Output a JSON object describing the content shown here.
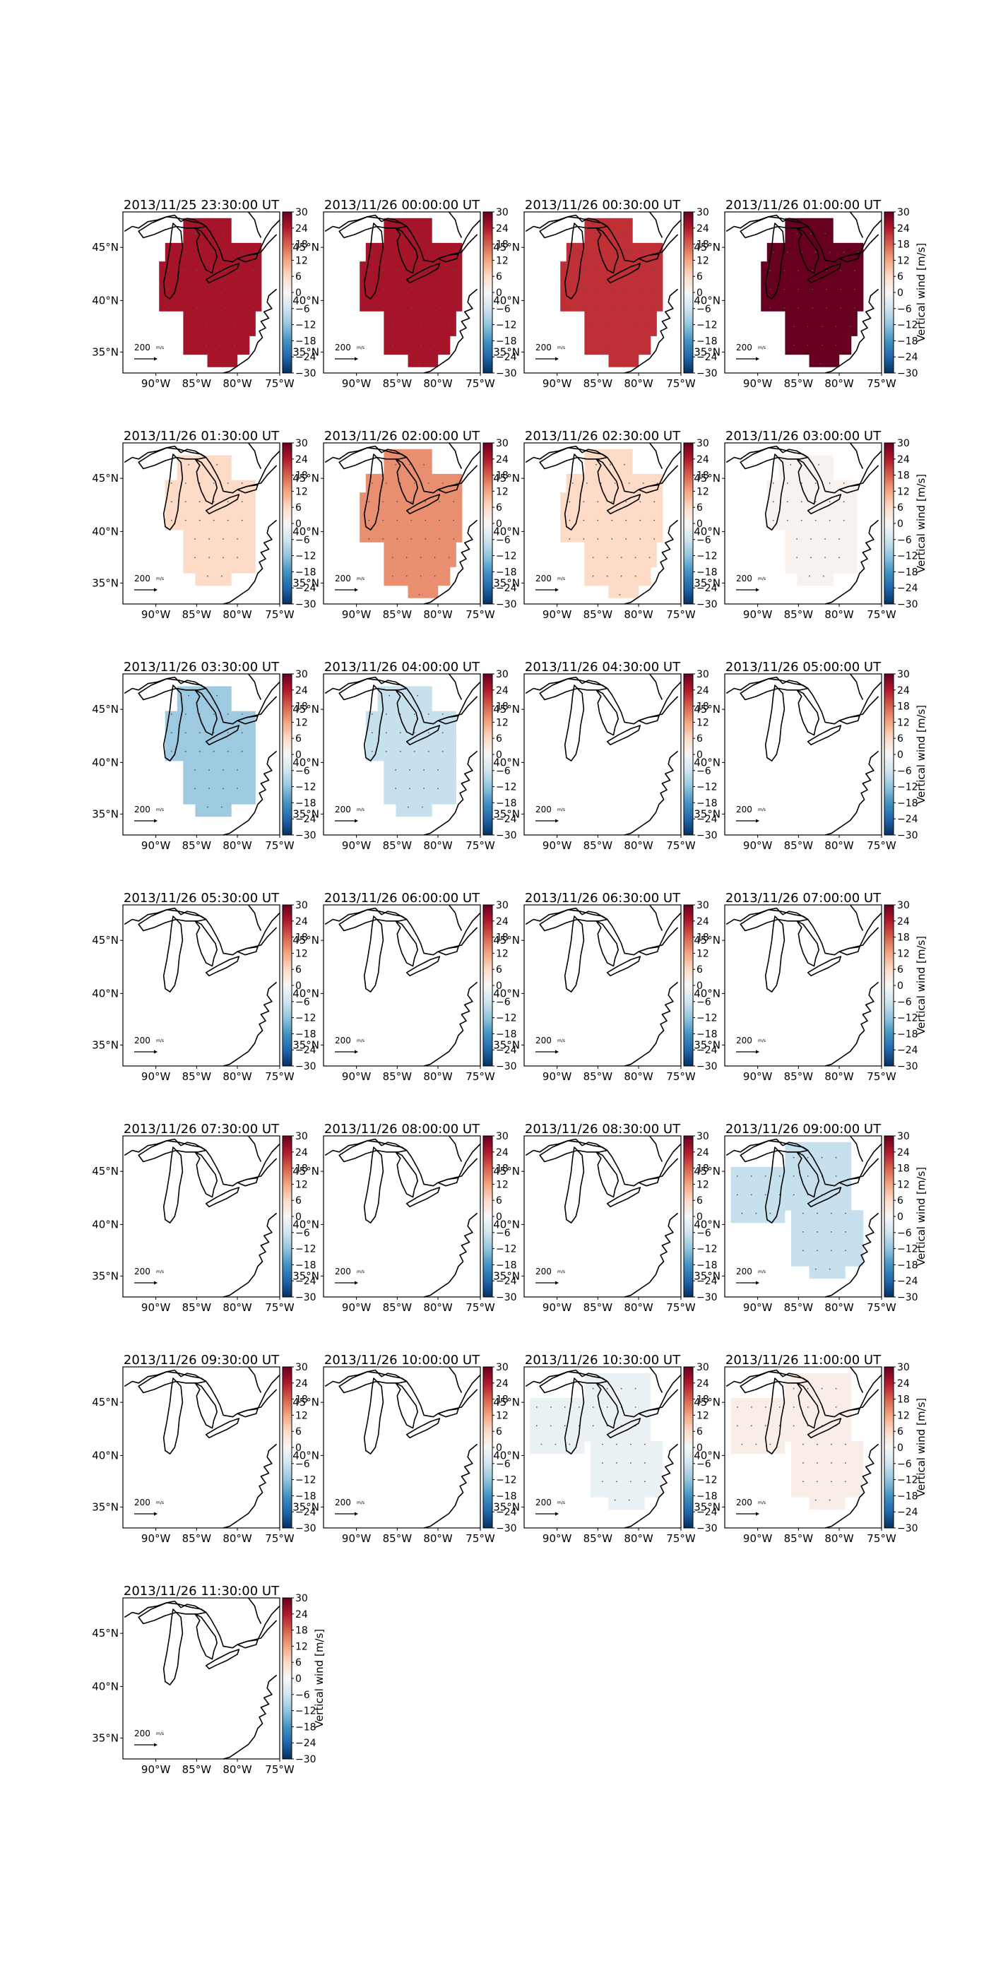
{
  "figure": {
    "colorbar": {
      "label": "Vertical wind [m/s]",
      "ticks": [
        "30",
        "24",
        "18",
        "12",
        "6",
        "0",
        "−6",
        "−12",
        "−18",
        "−24",
        "−30"
      ],
      "vmin": -30,
      "vmax": 30,
      "colormap": [
        "#053061",
        "#2166ac",
        "#4393c3",
        "#92c5de",
        "#d1e5f0",
        "#f7f7f7",
        "#fddbc7",
        "#f4a582",
        "#d6604d",
        "#b2182b",
        "#67001f"
      ]
    },
    "axes": {
      "lat_ticks": [
        "45°N",
        "40°N",
        "35°N"
      ],
      "lon_ticks": [
        "90°W",
        "85°W",
        "80°W",
        "75°W"
      ]
    },
    "scale_label": "200",
    "scale_unit": "m/s",
    "panels": [
      {
        "title": "2013/11/25 23:30:00 UT",
        "shape": "A",
        "value": 25
      },
      {
        "title": "2013/11/26 00:00:00 UT",
        "shape": "A",
        "value": 25
      },
      {
        "title": "2013/11/26 00:30:00 UT",
        "shape": "A",
        "value": 22
      },
      {
        "title": "2013/11/26 01:00:00 UT",
        "shape": "A",
        "value": 30
      },
      {
        "title": "2013/11/26 01:30:00 UT",
        "shape": "B",
        "value": 6
      },
      {
        "title": "2013/11/26 02:00:00 UT",
        "shape": "A",
        "value": 14
      },
      {
        "title": "2013/11/26 02:30:00 UT",
        "shape": "A",
        "value": 6
      },
      {
        "title": "2013/11/26 03:00:00 UT",
        "shape": "B",
        "value": 1
      },
      {
        "title": "2013/11/26 03:30:00 UT",
        "shape": "B",
        "value": -11
      },
      {
        "title": "2013/11/26 04:00:00 UT",
        "shape": "B",
        "value": -7
      },
      {
        "title": "2013/11/26 04:30:00 UT",
        "shape": "none",
        "value": 0
      },
      {
        "title": "2013/11/26 05:00:00 UT",
        "shape": "none",
        "value": 0
      },
      {
        "title": "2013/11/26 05:30:00 UT",
        "shape": "none",
        "value": 0
      },
      {
        "title": "2013/11/26 06:00:00 UT",
        "shape": "none",
        "value": 0
      },
      {
        "title": "2013/11/26 06:30:00 UT",
        "shape": "none",
        "value": 0
      },
      {
        "title": "2013/11/26 07:00:00 UT",
        "shape": "none",
        "value": 0
      },
      {
        "title": "2013/11/26 07:30:00 UT",
        "shape": "none",
        "value": 0
      },
      {
        "title": "2013/11/26 08:00:00 UT",
        "shape": "none",
        "value": 0
      },
      {
        "title": "2013/11/26 08:30:00 UT",
        "shape": "none",
        "value": 0
      },
      {
        "title": "2013/11/26 09:00:00 UT",
        "shape": "C",
        "value": -7
      },
      {
        "title": "2013/11/26 09:30:00 UT",
        "shape": "none",
        "value": 0
      },
      {
        "title": "2013/11/26 10:00:00 UT",
        "shape": "none",
        "value": 0
      },
      {
        "title": "2013/11/26 10:30:00 UT",
        "shape": "C",
        "value": -2
      },
      {
        "title": "2013/11/26 11:00:00 UT",
        "shape": "C",
        "value": 2
      },
      {
        "title": "2013/11/26 11:30:00 UT",
        "shape": "none",
        "value": 0
      }
    ]
  }
}
